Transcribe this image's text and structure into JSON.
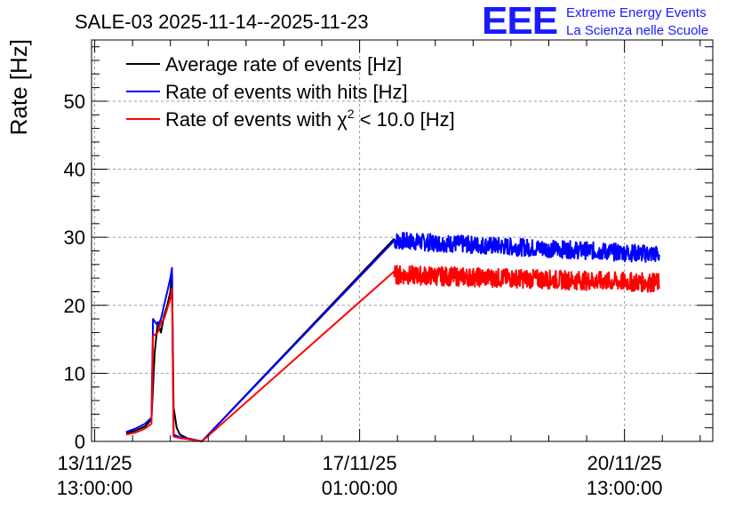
{
  "chart_data": {
    "type": "line",
    "title": "SALE-03 2025-11-14--2025-11-23",
    "ylabel": "Rate [Hz]",
    "xlabel": "",
    "ylim": [
      0,
      59
    ],
    "y_ticks": [
      0,
      10,
      20,
      30,
      40,
      50
    ],
    "x_ticks": [
      {
        "x": 0,
        "label_date": "13/11/25",
        "label_time": "13:00:00"
      },
      {
        "x": 84,
        "label_date": "17/11/25",
        "label_time": "01:00:00"
      },
      {
        "x": 168,
        "label_date": "20/11/25",
        "label_time": "13:00:00"
      }
    ],
    "x_unit": "hours since 13/11/25 13:00:00",
    "xlim": [
      -1,
      196
    ],
    "grid": true,
    "legend_position": "top-left",
    "legend": {
      "average": "Average rate of events [Hz]",
      "hits": "Rate of events with hits [Hz]",
      "chi2_prefix": "Rate of events with ",
      "chi2_symbol": "χ",
      "chi2_sup": "2",
      "chi2_suffix": " < 10.0 [Hz]"
    },
    "series": [
      {
        "name": "Average rate of events [Hz]",
        "color": "#000000",
        "points": [
          [
            10,
            1.2
          ],
          [
            13,
            1.6
          ],
          [
            16,
            2.2
          ],
          [
            18,
            3.2
          ],
          [
            19,
            13
          ],
          [
            20,
            17.5
          ],
          [
            21,
            16
          ],
          [
            22,
            18.5
          ],
          [
            23,
            20
          ],
          [
            24,
            22
          ],
          [
            24.5,
            25
          ],
          [
            25,
            5
          ],
          [
            26,
            2
          ],
          [
            27,
            1
          ],
          [
            30,
            0.3
          ],
          [
            34,
            0
          ],
          [
            95,
            29.8
          ]
        ]
      },
      {
        "name": "Rate of events with hits [Hz]",
        "color": "#0000ff",
        "points": [
          [
            10,
            1.4
          ],
          [
            13,
            1.9
          ],
          [
            16,
            2.6
          ],
          [
            18,
            3.5
          ],
          [
            18.5,
            18
          ],
          [
            20,
            17
          ],
          [
            21,
            18
          ],
          [
            22,
            20
          ],
          [
            23,
            22
          ],
          [
            24,
            24
          ],
          [
            24.5,
            25.5
          ],
          [
            25,
            1
          ],
          [
            27,
            0.6
          ],
          [
            30,
            0.4
          ],
          [
            34,
            0
          ],
          [
            95,
            29.5
          ]
        ],
        "noisy_segment": {
          "x_start": 95,
          "x_end": 179,
          "y_start": 29.5,
          "y_end": 27.5,
          "amplitude": 1.3
        }
      },
      {
        "name": "Rate of events with χ2 < 10.0 [Hz]",
        "color": "#ff0000",
        "points": [
          [
            10,
            1.0
          ],
          [
            13,
            1.3
          ],
          [
            16,
            1.9
          ],
          [
            18,
            2.6
          ],
          [
            18.5,
            15.5
          ],
          [
            20,
            16
          ],
          [
            21,
            17.5
          ],
          [
            22,
            18
          ],
          [
            23,
            19.5
          ],
          [
            24,
            21
          ],
          [
            24.5,
            22.5
          ],
          [
            25,
            0.7
          ],
          [
            27,
            0.5
          ],
          [
            30,
            0.3
          ],
          [
            34,
            0
          ],
          [
            95,
            25
          ]
        ],
        "noisy_segment": {
          "x_start": 95,
          "x_end": 179,
          "y_start": 24.5,
          "y_end": 23.3,
          "amplitude": 1.4
        }
      }
    ]
  },
  "logo": {
    "mark": "EEE",
    "line1": "Extreme Energy Events",
    "line2": "La Scienza nelle Scuole",
    "color": "#1a1aff"
  }
}
